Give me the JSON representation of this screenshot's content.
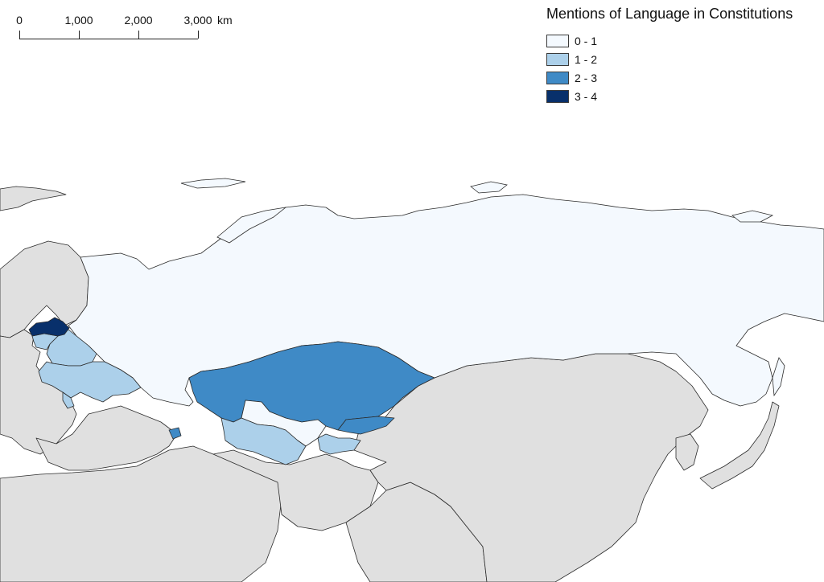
{
  "map": {
    "title": "Mentions of Language in Constitutions",
    "scale_bar": {
      "labels": [
        "0",
        "1,000",
        "2,000",
        "3,000"
      ],
      "unit": "km"
    },
    "legend": [
      {
        "label": "0 - 1",
        "color": "#f4f9fe"
      },
      {
        "label": "1 - 2",
        "color": "#acd0ea"
      },
      {
        "label": "2 - 3",
        "color": "#3f8ac6"
      },
      {
        "label": "3 - 4",
        "color": "#08306b"
      }
    ],
    "no_data_color": "#e0e0e0",
    "region_classes": {
      "russia": "0 - 1",
      "uzbekistan": "0 - 1",
      "belarus": "1 - 2",
      "ukraine": "1 - 2",
      "lithuania": "1 - 2",
      "turkmenistan": "1 - 2",
      "tajikistan": "1 - 2",
      "moldova": "1 - 2",
      "kazakhstan": "2 - 3",
      "kyrgyzstan": "2 - 3",
      "armenia": "2 - 3",
      "latvia": "3 - 4"
    }
  }
}
